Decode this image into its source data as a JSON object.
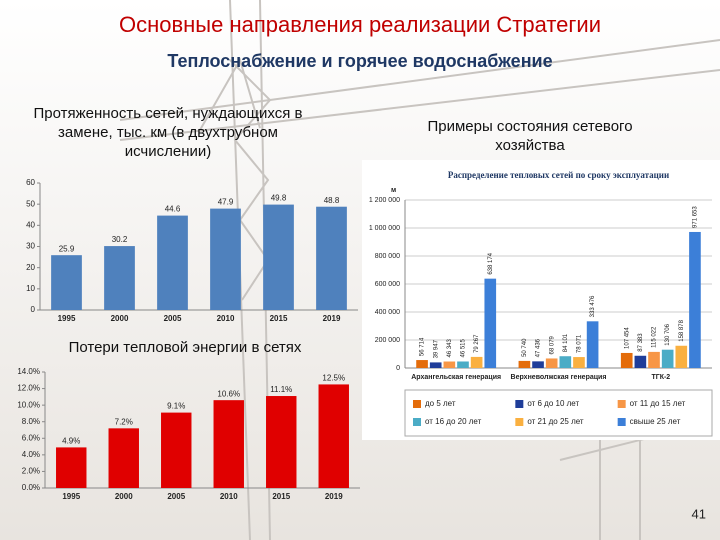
{
  "slide": {
    "title": "Основные направления реализации Стратегии",
    "subtitle": "Теплоснабжение и горячее водоснабжение",
    "examples_heading": "Примеры состояния сетевого хозяйства",
    "page_number": "41"
  },
  "chart_data": [
    {
      "type": "bar",
      "title": "Протяженность сетей, нуждающихся в замене, тыс. км (в двухтрубном исчислении)",
      "categories": [
        "1995",
        "2000",
        "2005",
        "2010",
        "2015",
        "2019"
      ],
      "values": [
        25.9,
        30.2,
        44.6,
        47.9,
        49.8,
        48.8
      ],
      "color": "#4f81bd",
      "ylim": [
        0,
        60
      ],
      "yticks": [
        0,
        10,
        20,
        30,
        40,
        50,
        60
      ],
      "grid": false
    },
    {
      "type": "bar",
      "title": "Потери тепловой энергии в сетях",
      "categories": [
        "1995",
        "2000",
        "2005",
        "2010",
        "2015",
        "2019"
      ],
      "values": [
        4.9,
        7.2,
        9.1,
        10.6,
        11.1,
        12.5
      ],
      "value_labels": [
        "4.9%",
        "7.2%",
        "9.1%",
        "10.6%",
        "11.1%",
        "12.5%"
      ],
      "color": "#e00000",
      "ylim": [
        0,
        14
      ],
      "yticks": [
        {
          "value": 0,
          "label": "0.0%"
        },
        {
          "value": 2,
          "label": "2.0%"
        },
        {
          "value": 4,
          "label": "4.0%"
        },
        {
          "value": 6,
          "label": "6.0%"
        },
        {
          "value": 8,
          "label": "8.0%"
        },
        {
          "value": 10,
          "label": "10.0%"
        },
        {
          "value": 12,
          "label": "12.0%"
        },
        {
          "value": 14,
          "label": "14.0%"
        }
      ],
      "grid": false
    },
    {
      "type": "bar",
      "title": "Распределение тепловых сетей по сроку эксплуатации",
      "y_label": "м",
      "categories": [
        "Архангельская генерация",
        "Верхневолжская генерация",
        "ТГК-2"
      ],
      "series": [
        {
          "name": "до 5 лет",
          "color": "#e46c0a",
          "values": [
            56714,
            50740,
            107454
          ],
          "value_labels": [
            "56 714",
            "50 740",
            "107 454"
          ]
        },
        {
          "name": "от 6 до 10 лет",
          "color": "#1f3d99",
          "values": [
            39947,
            47436,
            87383
          ],
          "value_labels": [
            "39 947",
            "47 436",
            "87 383"
          ]
        },
        {
          "name": "от 11 до 15 лет",
          "color": "#f79646",
          "values": [
            46343,
            68079,
            115022
          ],
          "value_labels": [
            "46 343",
            "68 079",
            "115 022"
          ]
        },
        {
          "name": "от 16 до 20 лет",
          "color": "#4bacc6",
          "values": [
            46515,
            84101,
            130706
          ],
          "value_labels": [
            "46 515",
            "84 101",
            "130 706"
          ]
        },
        {
          "name": "от 21 до 25 лет",
          "color": "#fab040",
          "values": [
            79267,
            78071,
            158878
          ],
          "value_labels": [
            "79 267",
            "78 071",
            "158 878"
          ]
        },
        {
          "name": "свыше 25 лет",
          "color": "#3c7fd8",
          "values": [
            638174,
            333476,
            971653
          ],
          "value_labels": [
            "638 174",
            "333 476",
            "971 653"
          ]
        }
      ],
      "ylim": [
        0,
        1200000
      ],
      "yticks": [
        {
          "value": 0,
          "label": "0"
        },
        {
          "value": 200000,
          "label": "200 000"
        },
        {
          "value": 400000,
          "label": "400 000"
        },
        {
          "value": 600000,
          "label": "600 000"
        },
        {
          "value": 800000,
          "label": "800 000"
        },
        {
          "value": 1000000,
          "label": "1 000 000"
        },
        {
          "value": 1200000,
          "label": "1 200 000"
        }
      ],
      "grid": true
    }
  ]
}
